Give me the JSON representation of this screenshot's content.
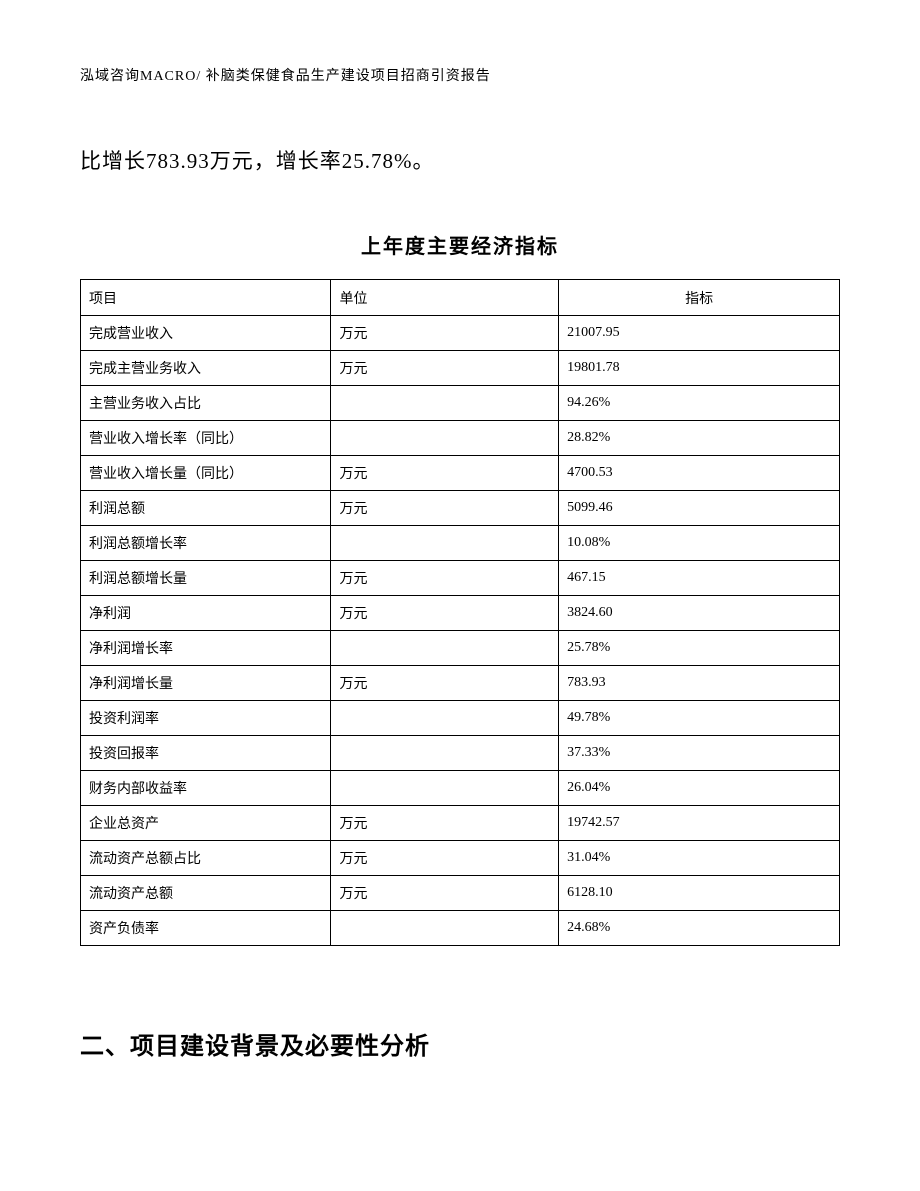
{
  "header": {
    "text": "泓域咨询MACRO/ 补脑类保健食品生产建设项目招商引资报告"
  },
  "paragraph": {
    "text": "比增长783.93万元，增长率25.78%。"
  },
  "table": {
    "title": "上年度主要经济指标",
    "columns": {
      "project": "项目",
      "unit": "单位",
      "value": "指标"
    },
    "rows": [
      {
        "project": "完成营业收入",
        "unit": "万元",
        "value": "21007.95"
      },
      {
        "project": "完成主营业务收入",
        "unit": "万元",
        "value": "19801.78"
      },
      {
        "project": "主营业务收入占比",
        "unit": "",
        "value": "94.26%"
      },
      {
        "project": "营业收入增长率（同比）",
        "unit": "",
        "value": "28.82%"
      },
      {
        "project": "营业收入增长量（同比）",
        "unit": "万元",
        "value": "4700.53"
      },
      {
        "project": "利润总额",
        "unit": "万元",
        "value": "5099.46"
      },
      {
        "project": "利润总额增长率",
        "unit": "",
        "value": "10.08%"
      },
      {
        "project": "利润总额增长量",
        "unit": "万元",
        "value": "467.15"
      },
      {
        "project": "净利润",
        "unit": "万元",
        "value": "3824.60"
      },
      {
        "project": "净利润增长率",
        "unit": "",
        "value": "25.78%"
      },
      {
        "project": "净利润增长量",
        "unit": "万元",
        "value": "783.93"
      },
      {
        "project": "投资利润率",
        "unit": "",
        "value": "49.78%"
      },
      {
        "project": "投资回报率",
        "unit": "",
        "value": "37.33%"
      },
      {
        "project": "财务内部收益率",
        "unit": "",
        "value": "26.04%"
      },
      {
        "project": "企业总资产",
        "unit": "万元",
        "value": "19742.57"
      },
      {
        "project": "流动资产总额占比",
        "unit": "万元",
        "value": "31.04%"
      },
      {
        "project": "流动资产总额",
        "unit": "万元",
        "value": "6128.10"
      },
      {
        "project": "资产负债率",
        "unit": "",
        "value": "24.68%"
      }
    ]
  },
  "section": {
    "heading": "二、项目建设背景及必要性分析"
  }
}
